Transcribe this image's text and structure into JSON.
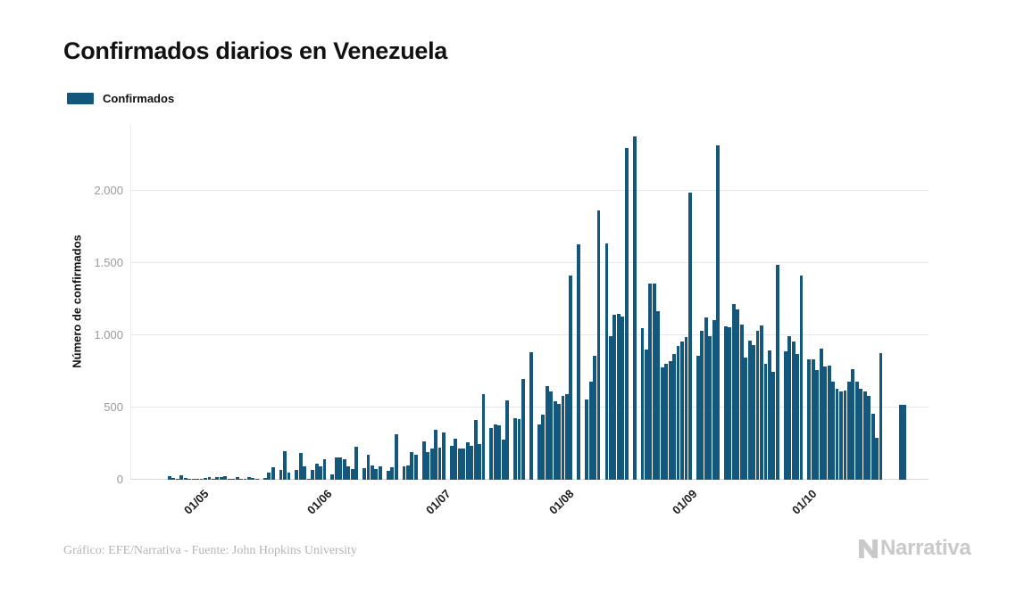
{
  "title": "Confirmados diarios en Venezuela",
  "legend": {
    "label": "Confirmados"
  },
  "colors": {
    "bar": "#14577d",
    "grid": "#e8e8e8",
    "axis_text": "#9a9a9a",
    "title_text": "#111111",
    "footer_text": "#b5b5b5",
    "logo_text": "#c9c9c9"
  },
  "y_axis": {
    "title": "Número de confirmados",
    "ticks": [
      {
        "value": 0,
        "label": "0"
      },
      {
        "value": 500,
        "label": "500"
      },
      {
        "value": 1000,
        "label": "1.000"
      },
      {
        "value": 1500,
        "label": "1.500"
      },
      {
        "value": 2000,
        "label": "2.000"
      }
    ]
  },
  "x_axis": {
    "labels": [
      {
        "label": "01/05",
        "day_index": 8
      },
      {
        "label": "01/06",
        "day_index": 39
      },
      {
        "label": "01/07",
        "day_index": 69
      },
      {
        "label": "01/08",
        "day_index": 100
      },
      {
        "label": "01/09",
        "day_index": 131
      },
      {
        "label": "01/10",
        "day_index": 161
      }
    ]
  },
  "footer": {
    "credit": "Gráfico: EFE/Narrativa - Fuente: John Hopkins University"
  },
  "logo": {
    "text": "Narrativa",
    "icon": "narrativa-n-mark"
  },
  "chart_data": {
    "type": "bar",
    "title": "Confirmados diarios en Venezuela",
    "xlabel": "",
    "ylabel": "Número de confirmados",
    "ylim": [
      0,
      2450
    ],
    "y_ticks": [
      0,
      500,
      1000,
      1500,
      2000
    ],
    "grid": true,
    "legend_position": "top-left",
    "x_start_date": "2020-04-23",
    "x_frequency": "daily",
    "x_tick_labels": [
      "01/05",
      "01/06",
      "01/07",
      "01/08",
      "01/09",
      "01/10"
    ],
    "series": [
      {
        "name": "Confirmados",
        "values": [
          27,
          12,
          6,
          31,
          10,
          6,
          8,
          4,
          8,
          12,
          21,
          2,
          16,
          21,
          25,
          6,
          2,
          21,
          4,
          2,
          16,
          10,
          2,
          0,
          12,
          49,
          86,
          0,
          66,
          198,
          49,
          0,
          66,
          183,
          91,
          8,
          70,
          111,
          91,
          142,
          0,
          35,
          152,
          152,
          142,
          91,
          76,
          228,
          0,
          80,
          173,
          101,
          76,
          91,
          0,
          60,
          84,
          317,
          0,
          91,
          101,
          193,
          173,
          0,
          265,
          193,
          214,
          348,
          224,
          330,
          0,
          235,
          286,
          218,
          218,
          259,
          235,
          416,
          245,
          595,
          0,
          358,
          383,
          374,
          280,
          547,
          0,
          424,
          420,
          698,
          0,
          883,
          0,
          385,
          453,
          650,
          609,
          543,
          523,
          580,
          595,
          1412,
          0,
          1630,
          0,
          553,
          677,
          858,
          1867,
          0,
          1636,
          992,
          1140,
          1151,
          1130,
          2297,
          0,
          2379,
          0,
          1048,
          903,
          1356,
          1356,
          1167,
          780,
          800,
          820,
          870,
          925,
          955,
          985,
          1988,
          0,
          858,
          1029,
          1126,
          992,
          1105,
          2317,
          0,
          1064,
          1054,
          1214,
          1181,
          1074,
          846,
          961,
          934,
          1033,
          1066,
          801,
          893,
          749,
          1490,
          0,
          889,
          992,
          955,
          873,
          1414,
          0,
          831,
          831,
          757,
          910,
          786,
          790,
          681,
          630,
          609,
          615,
          680,
          763,
          681,
          630,
          609,
          580,
          455,
          292,
          876,
          0,
          0,
          0,
          0,
          519,
          519
        ]
      }
    ]
  }
}
